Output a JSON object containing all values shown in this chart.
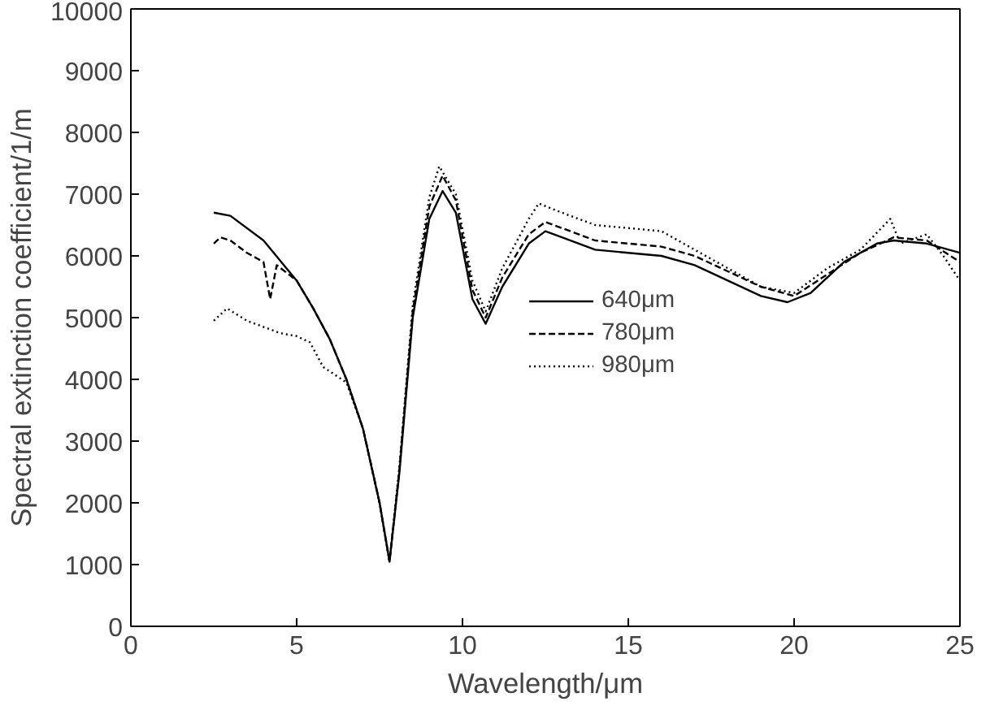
{
  "chart_data": {
    "type": "line",
    "xlabel": "Wavelength/μm",
    "ylabel": "Spectral extinction coefficient/1/m",
    "xlim": [
      0,
      25
    ],
    "ylim": [
      0,
      10000
    ],
    "xticks": [
      0,
      5,
      10,
      15,
      20,
      25
    ],
    "yticks": [
      0,
      1000,
      2000,
      3000,
      4000,
      5000,
      6000,
      7000,
      8000,
      9000,
      10000
    ],
    "grid": false,
    "legend": "right",
    "series": [
      {
        "name": "640μm",
        "color": "#000000",
        "line_style": "solid",
        "x": [
          2.5,
          3,
          4,
          5,
          5.5,
          6,
          6.5,
          7,
          7.5,
          7.8,
          8.1,
          8.5,
          9,
          9.4,
          9.8,
          10.3,
          10.7,
          11.2,
          12,
          12.5,
          13,
          14,
          15,
          16,
          17,
          18,
          19,
          19.8,
          20.5,
          21.5,
          22.5,
          23,
          24,
          25
        ],
        "values": [
          6700,
          6650,
          6250,
          5600,
          5150,
          4650,
          4000,
          3200,
          2000,
          1050,
          2500,
          5000,
          6600,
          7050,
          6700,
          5300,
          4900,
          5500,
          6200,
          6400,
          6300,
          6100,
          6050,
          6000,
          5850,
          5600,
          5350,
          5250,
          5400,
          5900,
          6200,
          6250,
          6200,
          6050
        ]
      },
      {
        "name": "780μm",
        "color": "#000000",
        "line_style": "dashed",
        "x": [
          2.5,
          2.7,
          3,
          3.5,
          4,
          4.2,
          4.4,
          5,
          5.5,
          6,
          6.5,
          7,
          7.5,
          7.8,
          8.1,
          8.5,
          9,
          9.4,
          9.8,
          10.3,
          10.7,
          11.2,
          12,
          12.5,
          13,
          14,
          15,
          16,
          17,
          18,
          19,
          20,
          21,
          22,
          23,
          24,
          25
        ],
        "values": [
          6200,
          6300,
          6250,
          6050,
          5900,
          5300,
          5850,
          5600,
          5150,
          4650,
          4000,
          3200,
          2000,
          1050,
          2550,
          5100,
          6800,
          7300,
          6900,
          5450,
          5000,
          5650,
          6350,
          6550,
          6450,
          6250,
          6200,
          6150,
          6000,
          5750,
          5500,
          5350,
          5700,
          6050,
          6300,
          6250,
          5900
        ]
      },
      {
        "name": "980μm",
        "color": "#000000",
        "line_style": "dotted",
        "x": [
          2.5,
          2.9,
          3.5,
          4,
          4.5,
          5,
          5.4,
          5.8,
          6.5,
          7,
          7.5,
          7.8,
          8.1,
          8.5,
          9,
          9.3,
          9.8,
          10.3,
          10.7,
          11.2,
          12,
          12.3,
          13,
          14,
          15,
          16,
          17,
          18,
          19,
          20,
          21,
          22,
          22.9,
          23.2,
          24,
          24.5,
          25
        ],
        "values": [
          4950,
          5150,
          4950,
          4850,
          4750,
          4700,
          4600,
          4200,
          3950,
          3200,
          2000,
          1050,
          2600,
          5200,
          6950,
          7450,
          7000,
          5600,
          5100,
          5800,
          6600,
          6850,
          6700,
          6500,
          6450,
          6400,
          6100,
          5800,
          5500,
          5400,
          5800,
          6100,
          6600,
          6200,
          6350,
          6000,
          5600
        ]
      }
    ]
  }
}
